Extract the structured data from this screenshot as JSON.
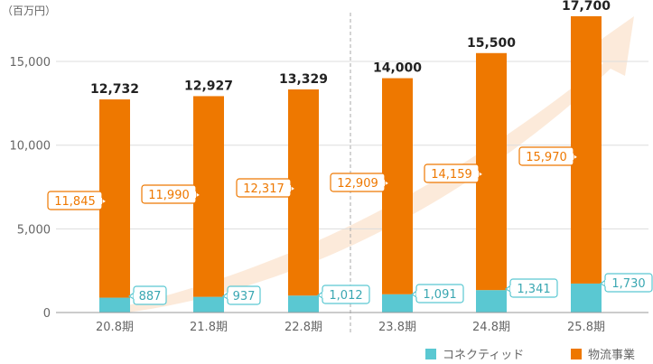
{
  "unit_label": "（百万円）",
  "colors": {
    "connected": "#5ac8d2",
    "logistics": "#ee7800",
    "arrow": "#fbe6d3",
    "axis_text": "#666666",
    "total_text": "#222222",
    "grid": "#dddddd",
    "divider": "#aaaaaa"
  },
  "chart_data": {
    "type": "bar",
    "stacked": true,
    "categories": [
      "20.8期",
      "21.8期",
      "22.8期",
      "23.8期",
      "24.8期",
      "25.8期"
    ],
    "series": [
      {
        "name": "コネクティッド",
        "values": [
          887,
          937,
          1012,
          1091,
          1341,
          1730
        ],
        "labels": [
          "887",
          "937",
          "1,012",
          "1,091",
          "1,341",
          "1,730"
        ]
      },
      {
        "name": "物流事業",
        "values": [
          11845,
          11990,
          12317,
          12909,
          14159,
          15970
        ],
        "labels": [
          "11,845",
          "11,990",
          "12,317",
          "12,909",
          "14,159",
          "15,970"
        ]
      }
    ],
    "totals": [
      12732,
      12927,
      13329,
      14000,
      15500,
      17700
    ],
    "total_labels": [
      "12,732",
      "12,927",
      "13,329",
      "14,000",
      "15,500",
      "17,700"
    ],
    "ylim": [
      0,
      17700
    ],
    "yticks": [
      0,
      5000,
      10000,
      15000
    ],
    "ytick_labels": [
      "0",
      "5,000",
      "10,000",
      "15,000"
    ],
    "divider_after_index": 2,
    "legend_position": "bottom-right"
  }
}
